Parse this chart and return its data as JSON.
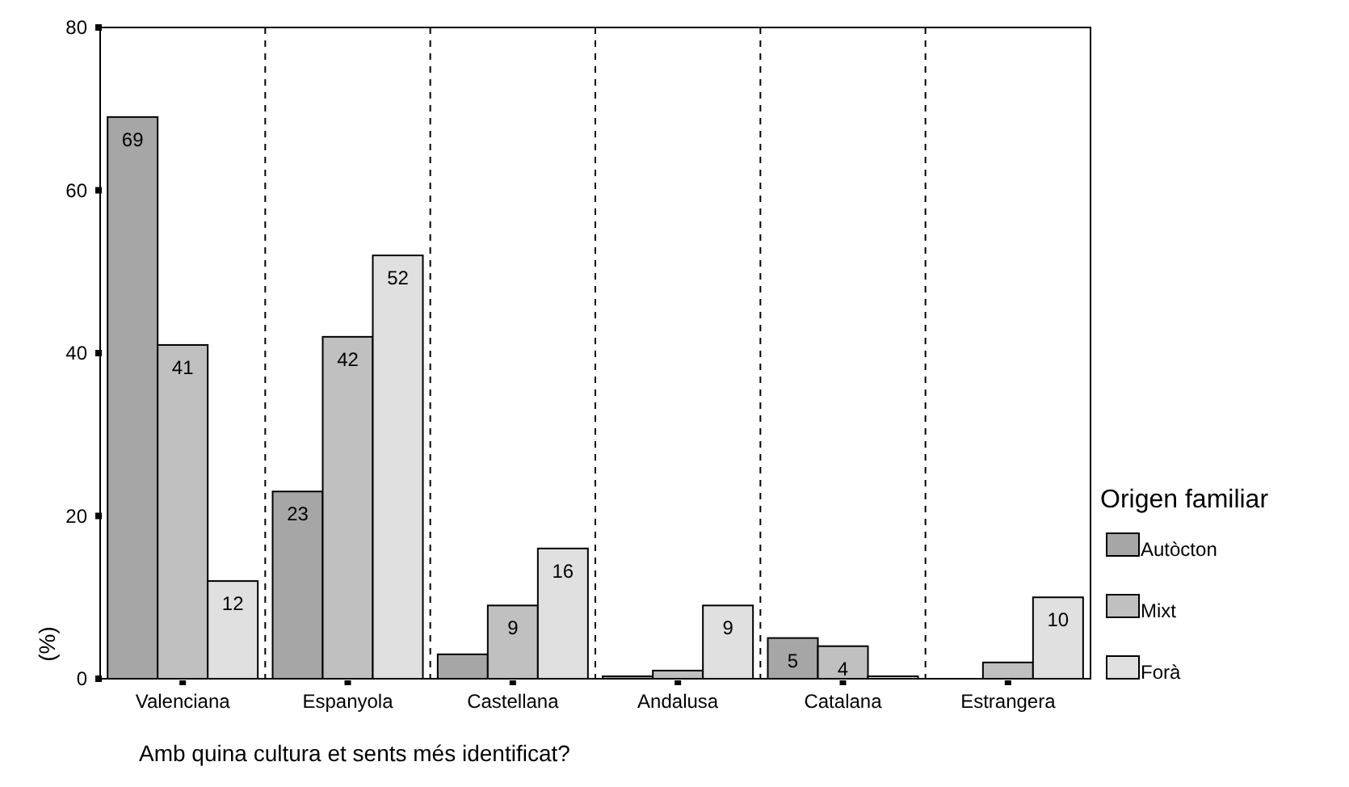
{
  "chart_data": {
    "type": "bar",
    "xlabel": "Amb quina cultura et sents més identificat?",
    "ylabel": "(%)",
    "legend_title": "Origen familiar",
    "categories": [
      "Valenciana",
      "Espanyola",
      "Castellana",
      "Andalusa",
      "Catalana",
      "Estrangera"
    ],
    "ylim": [
      0,
      80
    ],
    "yticks": [
      0,
      20,
      40,
      60,
      80
    ],
    "grid": false,
    "legend": "right",
    "series": [
      {
        "name": "Autòcton",
        "color": "#a6a6a6",
        "values": [
          69,
          23,
          3,
          0.3,
          5,
          null
        ],
        "value_labels": [
          "69",
          "23",
          null,
          null,
          "5",
          null
        ]
      },
      {
        "name": "Mixt",
        "color": "#c0c0c0",
        "values": [
          41,
          42,
          9,
          1,
          4,
          2
        ],
        "value_labels": [
          "41",
          "42",
          "9",
          null,
          "4",
          null
        ]
      },
      {
        "name": "Forà",
        "color": "#e0e0e0",
        "values": [
          12,
          52,
          16,
          9,
          0.3,
          10
        ],
        "value_labels": [
          "12",
          "52",
          "16",
          "9",
          null,
          "10"
        ]
      }
    ]
  }
}
